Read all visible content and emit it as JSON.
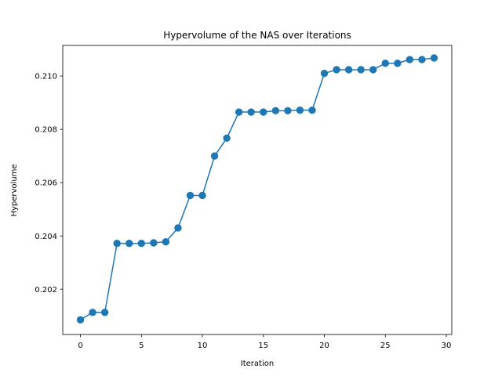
{
  "chart_data": {
    "type": "line",
    "title": "Hypervolume of the NAS over Iterations",
    "xlabel": "Iteration",
    "ylabel": "Hypervolume",
    "xlim": [
      -1.45,
      30.45
    ],
    "ylim": [
      0.2003,
      0.21115
    ],
    "xticks": [
      0,
      5,
      10,
      15,
      20,
      25,
      30
    ],
    "yticks": [
      0.202,
      0.204,
      0.206,
      0.208,
      0.21
    ],
    "ytick_labels": [
      "0.202",
      "0.204",
      "0.206",
      "0.208",
      "0.210"
    ],
    "grid": false,
    "legend": "none",
    "series": [
      {
        "color": "#1f77b4",
        "marker": "circle",
        "x": [
          0,
          1,
          2,
          3,
          4,
          5,
          6,
          7,
          8,
          9,
          10,
          11,
          12,
          13,
          14,
          15,
          16,
          17,
          18,
          19,
          20,
          21,
          22,
          23,
          24,
          25,
          26,
          27,
          28,
          29
        ],
        "y": [
          0.20085,
          0.20113,
          0.20113,
          0.20372,
          0.20372,
          0.20372,
          0.20374,
          0.20378,
          0.2043,
          0.20552,
          0.20552,
          0.207,
          0.20767,
          0.20865,
          0.20865,
          0.20865,
          0.2087,
          0.2087,
          0.20872,
          0.20872,
          0.2101,
          0.21024,
          0.21024,
          0.21024,
          0.21024,
          0.21048,
          0.21048,
          0.21062,
          0.21062,
          0.21068
        ]
      }
    ]
  }
}
